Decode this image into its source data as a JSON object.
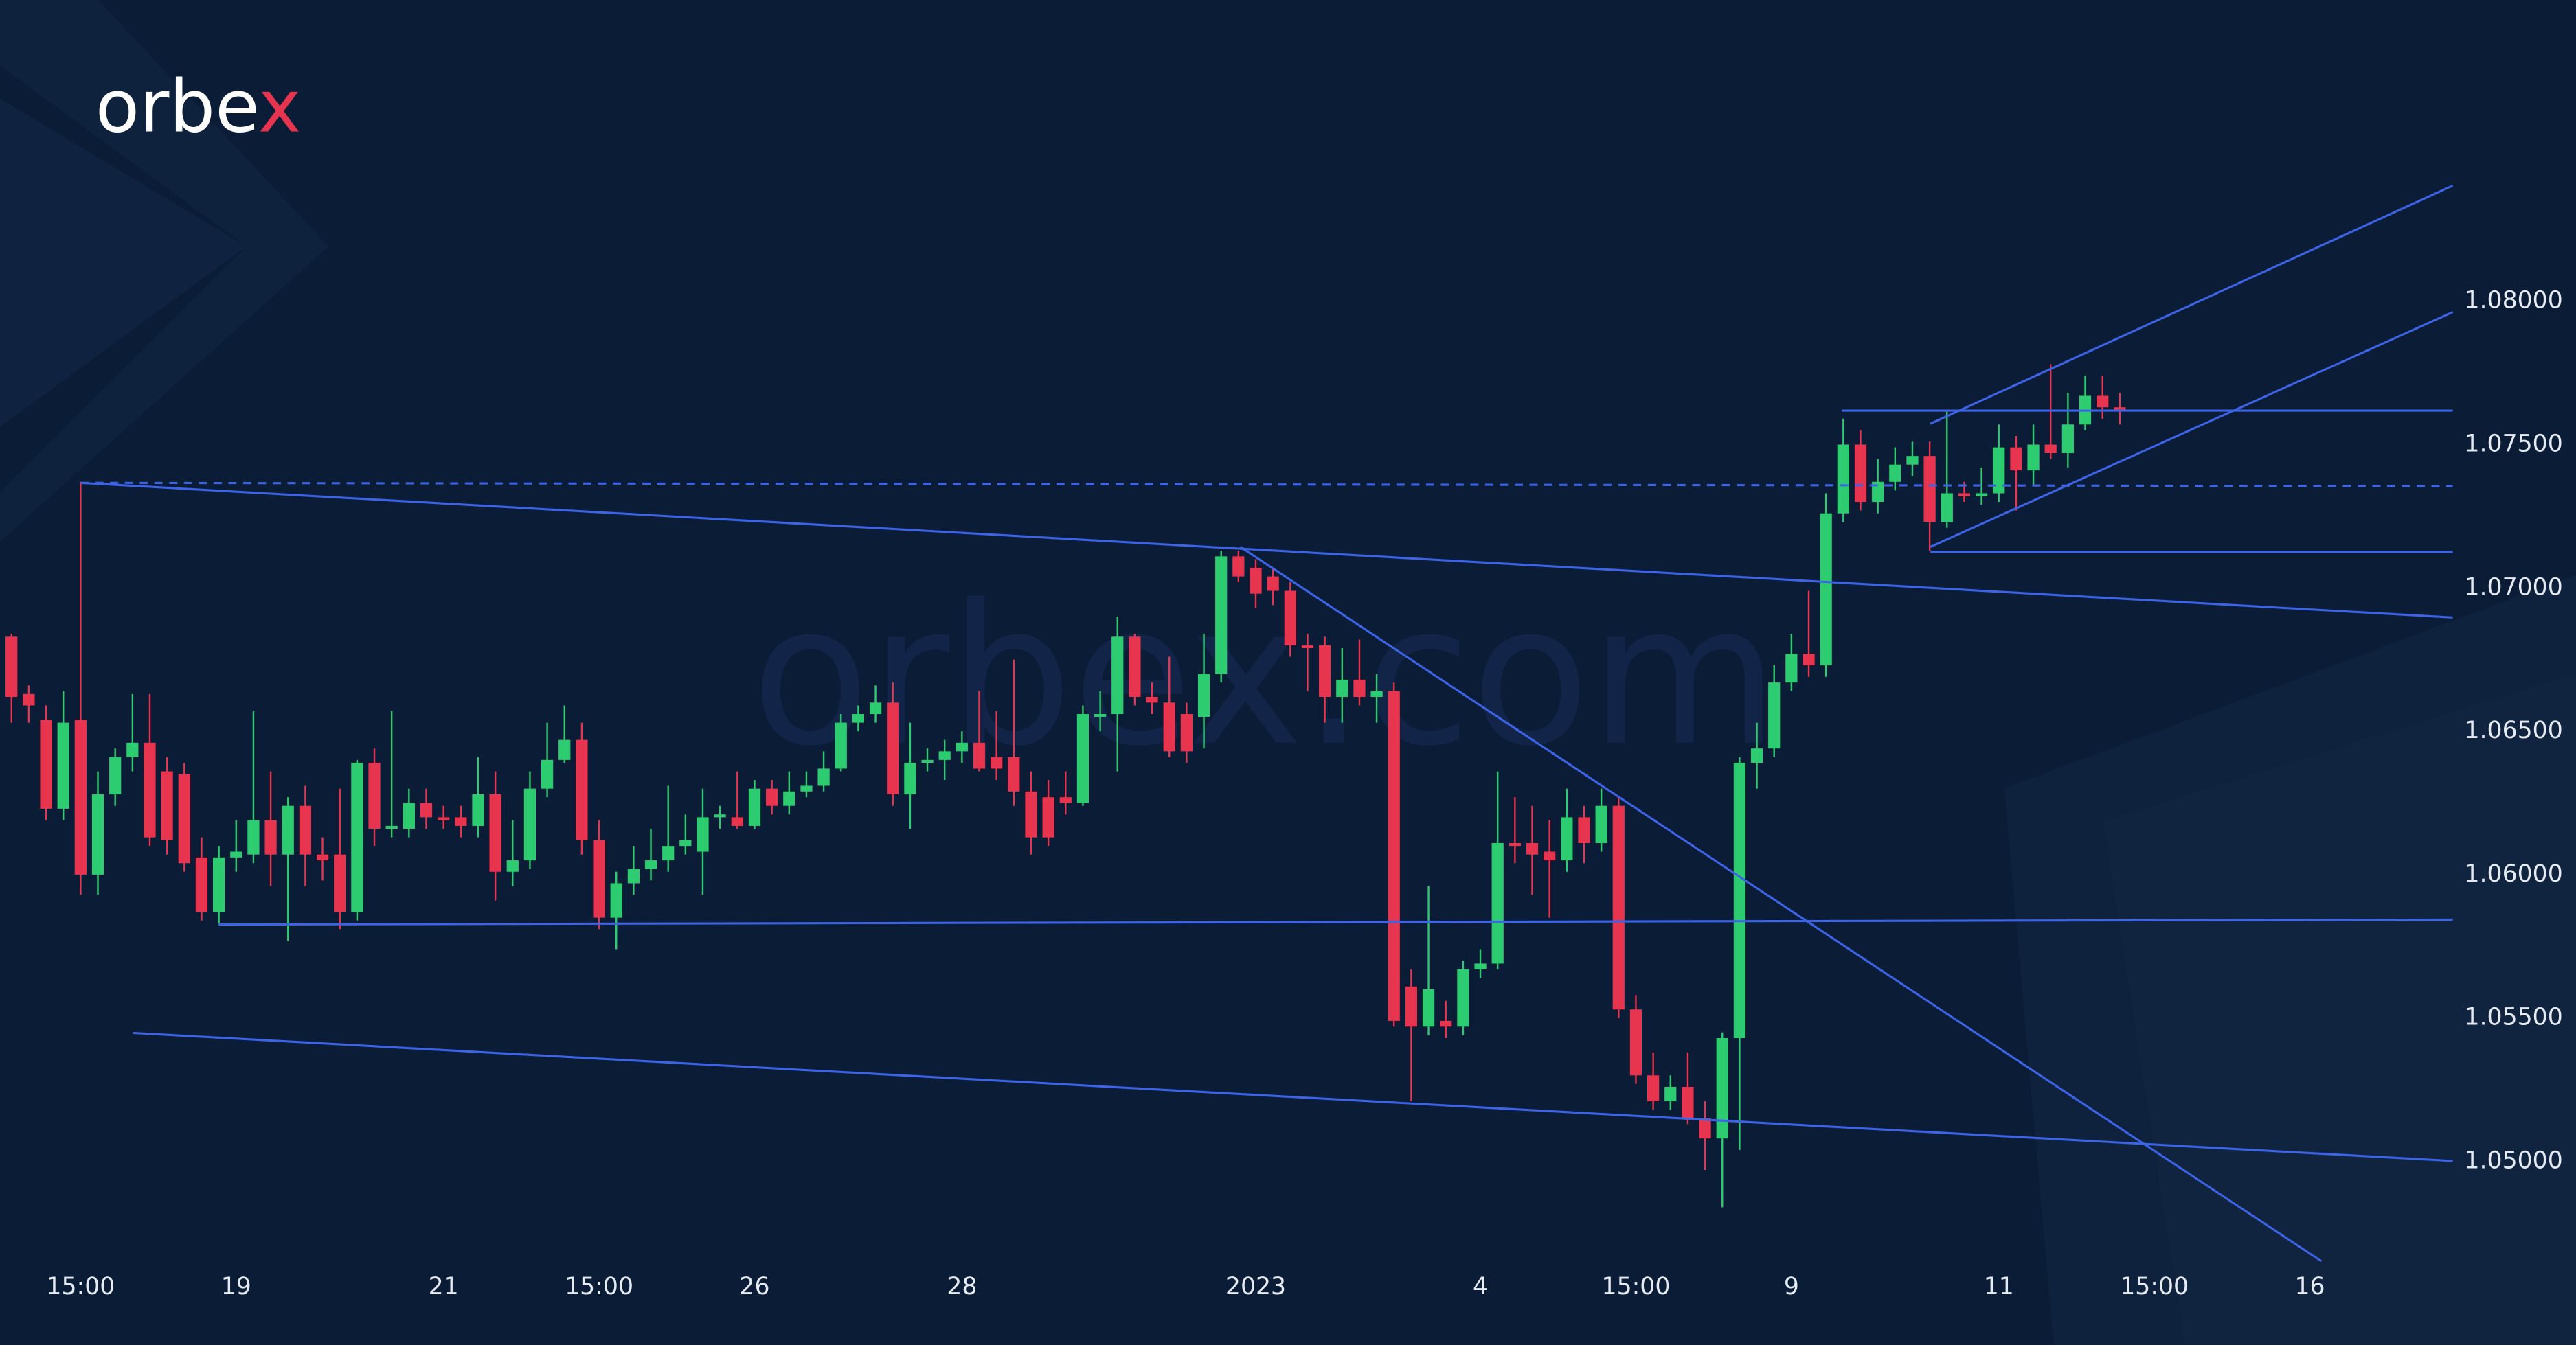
{
  "chart_data": {
    "type": "candlestick",
    "logo": "orbex",
    "watermark": "orbex.com",
    "up_color": "#2ecc71",
    "down_color": "#e8354f",
    "ylim": [
      1.0436,
      1.0905
    ],
    "yticks": [
      {
        "value": 1.05,
        "label": "1.05000"
      },
      {
        "value": 1.055,
        "label": "1.05500"
      },
      {
        "value": 1.06,
        "label": "1.06000"
      },
      {
        "value": 1.065,
        "label": "1.06500"
      },
      {
        "value": 1.07,
        "label": "1.07000"
      },
      {
        "value": 1.075,
        "label": "1.07500"
      },
      {
        "value": 1.08,
        "label": "1.08000"
      }
    ],
    "categories": [
      null,
      null,
      null,
      null,
      "15:00",
      null,
      null,
      null,
      null,
      null,
      null,
      null,
      null,
      "19",
      null,
      null,
      null,
      null,
      null,
      null,
      null,
      null,
      null,
      null,
      null,
      "21",
      null,
      null,
      null,
      null,
      null,
      null,
      null,
      null,
      "15:00",
      null,
      null,
      null,
      null,
      null,
      null,
      null,
      null,
      "26",
      null,
      null,
      null,
      null,
      null,
      null,
      null,
      null,
      null,
      null,
      null,
      "28",
      null,
      null,
      null,
      null,
      null,
      null,
      null,
      null,
      null,
      null,
      null,
      null,
      null,
      null,
      null,
      null,
      "2023",
      null,
      null,
      null,
      null,
      null,
      null,
      null,
      null,
      null,
      null,
      null,
      null,
      "4",
      null,
      null,
      null,
      null,
      null,
      null,
      null,
      null,
      "15:00",
      null,
      null,
      null,
      null,
      null,
      null,
      null,
      null,
      "9",
      null,
      null,
      null,
      null,
      null,
      null,
      null,
      null,
      null,
      null,
      null,
      "11",
      null,
      null,
      null,
      null,
      null,
      null,
      null,
      null,
      "15:00",
      null,
      null,
      null,
      null,
      null,
      null,
      null,
      null,
      "16"
    ],
    "open": [
      1.0683,
      1.0663,
      1.0654,
      1.0623,
      1.0654,
      1.06,
      1.0628,
      1.0641,
      1.0646,
      1.0636,
      1.0635,
      1.0606,
      1.0587,
      1.0606,
      1.0607,
      1.0619,
      1.0607,
      1.0624,
      1.0607,
      1.0607,
      1.0587,
      1.0639,
      1.0616,
      1.0616,
      1.0625,
      1.062,
      1.062,
      1.0617,
      1.0628,
      1.0601,
      1.0605,
      1.063,
      1.064,
      1.0647,
      1.0612,
      1.0585,
      1.0597,
      1.0602,
      1.0605,
      1.061,
      1.0608,
      1.062,
      1.062,
      1.0617,
      1.063,
      1.0624,
      1.0629,
      1.0631,
      1.0637,
      1.0653,
      1.0656,
      1.066,
      1.0628,
      1.0639,
      1.064,
      1.0643,
      1.0646,
      1.0641,
      1.0641,
      1.0629,
      1.0627,
      1.0627,
      1.0625,
      1.0655,
      1.0656,
      1.0683,
      1.0662,
      1.066,
      1.0656,
      1.0655,
      1.067,
      1.0711,
      1.0707,
      1.0704,
      1.0699,
      1.068,
      1.068,
      1.0662,
      1.0668,
      1.0662,
      1.0664,
      1.0561,
      1.0547,
      1.0549,
      1.0547,
      1.0567,
      1.0569,
      1.0611,
      1.0611,
      1.0608,
      1.0605,
      1.062,
      1.0611,
      1.0624,
      1.0553,
      1.053,
      1.0521,
      1.0526,
      1.0515,
      1.0508,
      1.0543,
      1.0639,
      1.0644,
      1.0667,
      1.0677,
      1.0673,
      1.0726,
      1.075,
      1.073,
      1.0737,
      1.0743,
      1.0746,
      1.0723,
      1.0733,
      1.0732,
      1.0733,
      1.0749,
      1.0741,
      1.075,
      1.0747,
      1.0757,
      1.0767,
      1.0763,
      null,
      null,
      null,
      null,
      null,
      null,
      null,
      null,
      null,
      null,
      null
    ],
    "high": [
      1.0684,
      1.0666,
      1.0659,
      1.0664,
      1.0737,
      1.0636,
      1.0644,
      1.0663,
      1.0663,
      1.0641,
      1.0639,
      1.0613,
      1.061,
      1.0619,
      1.0657,
      1.0636,
      1.0627,
      1.0631,
      1.0613,
      1.063,
      1.064,
      1.0644,
      1.0657,
      1.063,
      1.063,
      1.0624,
      1.0624,
      1.0641,
      1.0636,
      1.0619,
      1.0636,
      1.0653,
      1.0659,
      1.0653,
      1.0619,
      1.0601,
      1.061,
      1.0616,
      1.0631,
      1.0621,
      1.063,
      1.0624,
      1.0636,
      1.0633,
      1.0633,
      1.0636,
      1.0636,
      1.0643,
      1.0656,
      1.0659,
      1.0666,
      1.0667,
      1.0653,
      1.0644,
      1.0647,
      1.065,
      1.0664,
      1.0657,
      1.0675,
      1.0636,
      1.0633,
      1.0636,
      1.0659,
      1.0664,
      1.069,
      1.0684,
      1.0667,
      1.0676,
      1.066,
      1.0684,
      1.0713,
      1.0713,
      1.071,
      1.0707,
      1.0702,
      1.0684,
      1.0683,
      1.0679,
      1.0682,
      1.067,
      1.0667,
      1.0567,
      1.0596,
      1.0556,
      1.057,
      1.0574,
      1.0636,
      1.0627,
      1.0624,
      1.0619,
      1.063,
      1.0624,
      1.063,
      1.0627,
      1.0558,
      1.0538,
      1.053,
      1.0538,
      1.0521,
      1.0545,
      1.0641,
      1.0653,
      1.0673,
      1.0684,
      1.0699,
      1.0733,
      1.0759,
      1.0755,
      1.0745,
      1.0749,
      1.0751,
      1.0751,
      1.0762,
      1.0737,
      1.0742,
      1.0757,
      1.0753,
      1.0757,
      1.0778,
      1.0768,
      1.0774,
      1.0774,
      1.0768,
      null,
      null,
      null,
      null,
      null,
      null,
      null,
      null,
      null,
      null,
      null
    ],
    "low": [
      1.0653,
      1.0653,
      1.0619,
      1.0619,
      1.0593,
      1.0593,
      1.0624,
      1.0636,
      1.061,
      1.0607,
      1.0601,
      1.0584,
      1.0583,
      1.0601,
      1.0604,
      1.0596,
      1.0577,
      1.0596,
      1.0598,
      1.0581,
      1.0584,
      1.061,
      1.0613,
      1.0613,
      1.0616,
      1.0616,
      1.0613,
      1.0613,
      1.0591,
      1.0596,
      1.0602,
      1.0627,
      1.0639,
      1.0607,
      1.0581,
      1.0574,
      1.0593,
      1.0598,
      1.0601,
      1.0607,
      1.0593,
      1.0616,
      1.0616,
      1.0616,
      1.0621,
      1.0621,
      1.0627,
      1.0629,
      1.0636,
      1.065,
      1.0653,
      1.0624,
      1.0616,
      1.0636,
      1.0633,
      1.0639,
      1.0636,
      1.0633,
      1.0624,
      1.0607,
      1.061,
      1.0621,
      1.0624,
      1.065,
      1.0636,
      1.0659,
      1.0656,
      1.0641,
      1.0639,
      1.0644,
      1.0667,
      1.0702,
      1.0693,
      1.0694,
      1.0676,
      1.0664,
      1.0653,
      1.0653,
      1.0659,
      1.0653,
      1.0547,
      1.0521,
      1.0544,
      1.0543,
      1.0544,
      1.0564,
      1.0567,
      1.0604,
      1.0593,
      1.0585,
      1.0601,
      1.0604,
      1.0608,
      1.055,
      1.0527,
      1.0518,
      1.0518,
      1.0513,
      1.0497,
      1.0484,
      1.0504,
      1.063,
      1.0641,
      1.0664,
      1.0669,
      1.0669,
      1.0723,
      1.0727,
      1.0726,
      1.0734,
      1.0739,
      1.0713,
      1.0721,
      1.073,
      1.0729,
      1.073,
      1.0727,
      1.0736,
      1.0745,
      1.0742,
      1.0755,
      1.0759,
      1.0757,
      null,
      null,
      null,
      null,
      null,
      null,
      null,
      null,
      null,
      null,
      null
    ],
    "close": [
      1.0662,
      1.0659,
      1.0623,
      1.0653,
      1.06,
      1.0628,
      1.0641,
      1.0646,
      1.0613,
      1.0612,
      1.0604,
      1.0587,
      1.0606,
      1.0608,
      1.0619,
      1.0607,
      1.0624,
      1.0607,
      1.0605,
      1.0587,
      1.0639,
      1.0616,
      1.0617,
      1.0625,
      1.062,
      1.0619,
      1.0617,
      1.0628,
      1.0601,
      1.0605,
      1.063,
      1.064,
      1.0647,
      1.0612,
      1.0585,
      1.0597,
      1.0602,
      1.0605,
      1.061,
      1.0612,
      1.062,
      1.0621,
      1.0617,
      1.063,
      1.0624,
      1.0629,
      1.0631,
      1.0637,
      1.0653,
      1.0656,
      1.066,
      1.0628,
      1.0639,
      1.064,
      1.0643,
      1.0646,
      1.0637,
      1.0637,
      1.0629,
      1.0613,
      1.0613,
      1.0625,
      1.0656,
      1.0656,
      1.0683,
      1.0662,
      1.066,
      1.0643,
      1.0643,
      1.067,
      1.0711,
      1.0704,
      1.0698,
      1.0699,
      1.068,
      1.0679,
      1.0662,
      1.0668,
      1.0662,
      1.0664,
      1.0549,
      1.0547,
      1.056,
      1.0547,
      1.0567,
      1.0569,
      1.0611,
      1.061,
      1.0607,
      1.0605,
      1.062,
      1.0611,
      1.0624,
      1.0553,
      1.053,
      1.0521,
      1.0526,
      1.0515,
      1.0508,
      1.0543,
      1.0639,
      1.0644,
      1.0667,
      1.0677,
      1.0673,
      1.0726,
      1.075,
      1.073,
      1.0737,
      1.0743,
      1.0746,
      1.0723,
      1.0733,
      1.0732,
      1.0733,
      1.0749,
      1.0741,
      1.075,
      1.0747,
      1.0757,
      1.0767,
      1.0763,
      1.0762,
      null,
      null,
      null,
      null,
      null,
      null,
      null,
      null,
      null,
      null,
      null
    ]
  }
}
